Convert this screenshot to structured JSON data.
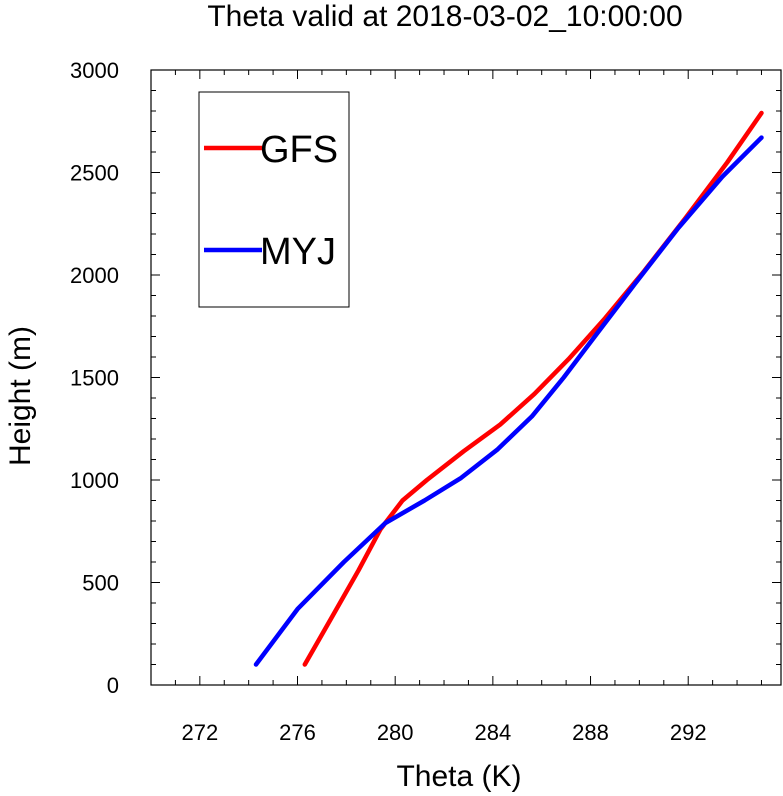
{
  "chart_data": {
    "type": "line",
    "title": "Theta valid at 2018-03-02_10:00:00",
    "xlabel": "Theta (K)",
    "ylabel": "Height (m)",
    "xlim": [
      270,
      295.8
    ],
    "ylim": [
      0,
      3000
    ],
    "x_ticks": [
      272,
      276,
      280,
      284,
      288,
      292
    ],
    "y_ticks": [
      0,
      500,
      1000,
      1500,
      2000,
      2500,
      3000
    ],
    "grid": false,
    "legend_position": "top-left",
    "series": [
      {
        "name": "GFS",
        "color": "#ff0000",
        "points": [
          [
            276.3,
            100
          ],
          [
            277.5,
            350
          ],
          [
            278.5,
            560
          ],
          [
            279.4,
            760
          ],
          [
            280.3,
            900
          ],
          [
            281.3,
            1000
          ],
          [
            282.8,
            1140
          ],
          [
            284.3,
            1270
          ],
          [
            285.7,
            1420
          ],
          [
            287.1,
            1590
          ],
          [
            288.6,
            1790
          ],
          [
            290.2,
            2020
          ],
          [
            291.9,
            2280
          ],
          [
            293.6,
            2550
          ],
          [
            295.0,
            2790
          ]
        ]
      },
      {
        "name": "MYJ",
        "color": "#0000ff",
        "points": [
          [
            274.3,
            100
          ],
          [
            276.0,
            370
          ],
          [
            277.9,
            600
          ],
          [
            279.6,
            790
          ],
          [
            281.2,
            900
          ],
          [
            282.7,
            1010
          ],
          [
            284.2,
            1150
          ],
          [
            285.6,
            1310
          ],
          [
            286.9,
            1500
          ],
          [
            288.3,
            1720
          ],
          [
            289.9,
            1970
          ],
          [
            291.6,
            2230
          ],
          [
            293.4,
            2480
          ],
          [
            295.0,
            2670
          ]
        ]
      }
    ]
  }
}
